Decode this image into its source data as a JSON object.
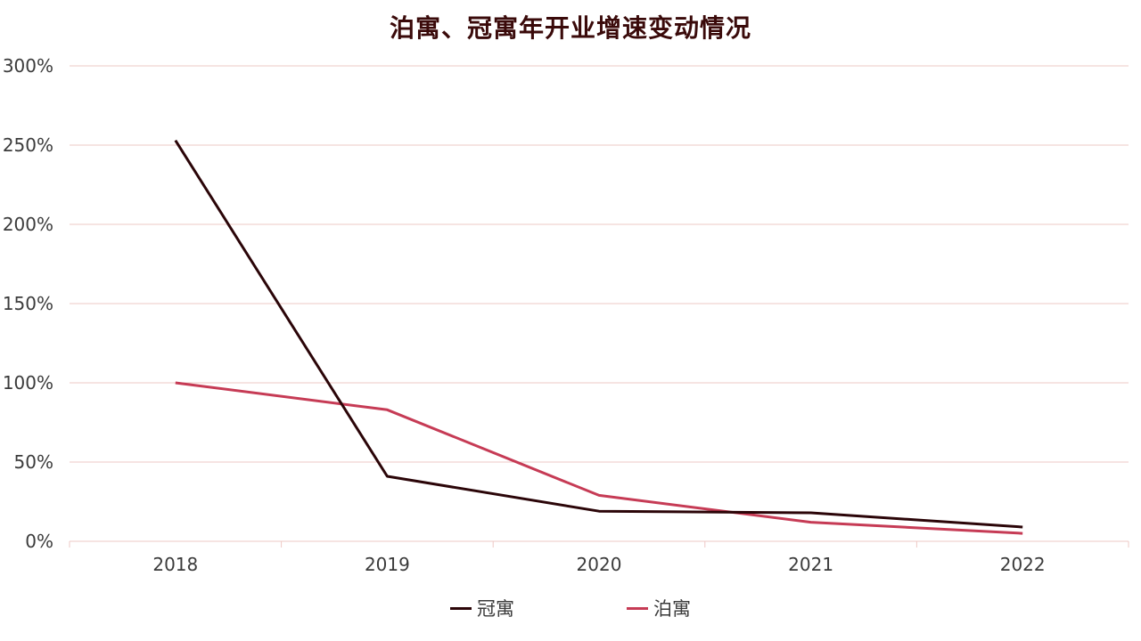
{
  "chart_data": {
    "type": "line",
    "title": "泊寓、冠寓年开业增速变动情况",
    "xlabel": "",
    "ylabel": "",
    "categories": [
      "2018",
      "2019",
      "2020",
      "2021",
      "2022"
    ],
    "series": [
      {
        "name": "冠寓",
        "values": [
          253,
          41,
          19,
          18,
          9
        ],
        "color": "#2b0508"
      },
      {
        "name": "泊寓",
        "values": [
          100,
          83,
          29,
          12,
          5
        ],
        "color": "#c63b55"
      }
    ],
    "ylim": [
      0,
      300
    ],
    "yticks": [
      0,
      50,
      100,
      150,
      200,
      250,
      300
    ],
    "ytick_labels": [
      "0%",
      "50%",
      "100%",
      "150%",
      "200%",
      "250%",
      "300%"
    ],
    "grid": true,
    "grid_color": "#eec8c4",
    "legend_position": "bottom"
  }
}
